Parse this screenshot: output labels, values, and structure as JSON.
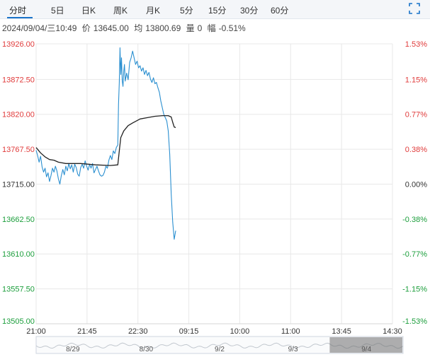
{
  "tabs": [
    {
      "label": "分时",
      "active": true
    },
    {
      "label": "5日"
    },
    {
      "label": "日K"
    },
    {
      "label": "周K"
    },
    {
      "label": "月K"
    },
    {
      "label": "5分"
    },
    {
      "label": "15分"
    },
    {
      "label": "30分"
    },
    {
      "label": "60分"
    }
  ],
  "info": {
    "datetime": "2024/09/04/三10:49",
    "price_label": "价",
    "price": "13645.00",
    "avg_label": "均",
    "avg": "13800.69",
    "vol_label": "量",
    "vol": "0",
    "change_label": "幅",
    "change": "-0.51%"
  },
  "colors": {
    "up": "#e03b3b",
    "down": "#1c9e3c",
    "neutral": "#333333",
    "price_line": "#2a8fd0",
    "avg_line": "#222222",
    "grid": "#e8e8e8",
    "accent": "#1a73c9"
  },
  "chart_data": {
    "type": "line",
    "title": "",
    "xlabel": "",
    "ylabel": "",
    "ylim": [
      13505.0,
      13926.0
    ],
    "y_ticks": [
      {
        "value": 13926.0,
        "label": "13926.00",
        "pct": "1.53%",
        "dir": "up"
      },
      {
        "value": 13872.5,
        "label": "13872.50",
        "pct": "1.15%",
        "dir": "up"
      },
      {
        "value": 13820.0,
        "label": "13820.00",
        "pct": "0.77%",
        "dir": "up"
      },
      {
        "value": 13767.5,
        "label": "13767.50",
        "pct": "0.38%",
        "dir": "up"
      },
      {
        "value": 13715.0,
        "label": "13715.00",
        "pct": "0.00%",
        "dir": "flat"
      },
      {
        "value": 13662.5,
        "label": "13662.50",
        "pct": "-0.38%",
        "dir": "down"
      },
      {
        "value": 13610.0,
        "label": "13610.00",
        "pct": "-0.77%",
        "dir": "down"
      },
      {
        "value": 13557.5,
        "label": "13557.50",
        "pct": "-1.15%",
        "dir": "down"
      },
      {
        "value": 13505.0,
        "label": "13505.00",
        "pct": "-1.53%",
        "dir": "down"
      }
    ],
    "x_ticks": [
      "21:00",
      "21:45",
      "22:30",
      "09:15",
      "10:00",
      "11:00",
      "13:45",
      "14:30"
    ],
    "series": [
      {
        "role": "price",
        "points": [
          [
            0.0,
            13766
          ],
          [
            2.0,
            13758
          ],
          [
            4.0,
            13748
          ],
          [
            6.0,
            13757
          ],
          [
            8.0,
            13741
          ],
          [
            10.0,
            13733
          ],
          [
            12.0,
            13739
          ],
          [
            14.0,
            13726
          ],
          [
            16.0,
            13732
          ],
          [
            18.0,
            13719
          ],
          [
            20.0,
            13728
          ],
          [
            22.0,
            13739
          ],
          [
            24.0,
            13733
          ],
          [
            26.0,
            13742
          ],
          [
            28.0,
            13735
          ],
          [
            30.0,
            13723
          ],
          [
            32.0,
            13715
          ],
          [
            34.0,
            13728
          ],
          [
            36.0,
            13737
          ],
          [
            38.0,
            13729
          ],
          [
            40.0,
            13742
          ],
          [
            42.0,
            13735
          ],
          [
            44.0,
            13746
          ],
          [
            46.0,
            13738
          ],
          [
            48.0,
            13744
          ],
          [
            50.0,
            13733
          ],
          [
            52.0,
            13745
          ],
          [
            54.0,
            13740
          ],
          [
            56.0,
            13730
          ],
          [
            58.0,
            13727
          ],
          [
            60.0,
            13740
          ],
          [
            62.0,
            13745
          ],
          [
            64.0,
            13739
          ],
          [
            66.0,
            13750
          ],
          [
            68.0,
            13742
          ],
          [
            70.0,
            13736
          ],
          [
            72.0,
            13745
          ],
          [
            74.0,
            13739
          ],
          [
            76.0,
            13746
          ],
          [
            78.0,
            13732
          ],
          [
            80.0,
            13737
          ],
          [
            82.0,
            13742
          ],
          [
            84.0,
            13735
          ],
          [
            86.0,
            13729
          ],
          [
            88.0,
            13727
          ],
          [
            90.0,
            13728
          ],
          [
            92.0,
            13733
          ],
          [
            94.0,
            13742
          ],
          [
            96.0,
            13739
          ],
          [
            98.0,
            13751
          ],
          [
            100.0,
            13758
          ],
          [
            102.0,
            13752
          ],
          [
            104.0,
            13765
          ],
          [
            106.0,
            13761
          ],
          [
            108.0,
            13770
          ],
          [
            110.0,
            13774
          ],
          [
            111.0,
            13835
          ],
          [
            112.0,
            13868
          ],
          [
            113.0,
            13920
          ],
          [
            114.0,
            13880
          ],
          [
            115.0,
            13905
          ],
          [
            116.0,
            13870
          ],
          [
            117.0,
            13862
          ],
          [
            118.0,
            13885
          ],
          [
            119.0,
            13895
          ],
          [
            120.0,
            13870
          ],
          [
            122.0,
            13882
          ],
          [
            124.0,
            13872
          ],
          [
            126.0,
            13898
          ],
          [
            128.0,
            13905
          ],
          [
            130.0,
            13915
          ],
          [
            132.0,
            13905
          ],
          [
            134.0,
            13895
          ],
          [
            136.0,
            13900
          ],
          [
            138.0,
            13890
          ],
          [
            140.0,
            13893
          ],
          [
            142.0,
            13885
          ],
          [
            144.0,
            13890
          ],
          [
            146.0,
            13880
          ],
          [
            148.0,
            13886
          ],
          [
            150.0,
            13878
          ],
          [
            152.0,
            13883
          ],
          [
            154.0,
            13873
          ],
          [
            156.0,
            13868
          ],
          [
            158.0,
            13875
          ],
          [
            160.0,
            13866
          ],
          [
            162.0,
            13868
          ],
          [
            164.0,
            13860
          ],
          [
            166.0,
            13853
          ],
          [
            168.0,
            13840
          ],
          [
            170.0,
            13830
          ],
          [
            172.0,
            13820
          ],
          [
            174.0,
            13815
          ],
          [
            176.0,
            13810
          ],
          [
            178.0,
            13795
          ],
          [
            180.0,
            13760
          ],
          [
            182.0,
            13700
          ],
          [
            184.0,
            13658
          ],
          [
            186.0,
            13632
          ],
          [
            188.0,
            13645
          ]
        ]
      },
      {
        "role": "average",
        "points": [
          [
            0.0,
            13770
          ],
          [
            6.0,
            13762
          ],
          [
            12.0,
            13756
          ],
          [
            18.0,
            13752
          ],
          [
            24.0,
            13751
          ],
          [
            30.0,
            13748
          ],
          [
            40.0,
            13746
          ],
          [
            60.0,
            13746
          ],
          [
            80.0,
            13744
          ],
          [
            100.0,
            13743
          ],
          [
            110.0,
            13744
          ],
          [
            112.0,
            13765
          ],
          [
            114.0,
            13785
          ],
          [
            118.0,
            13795
          ],
          [
            124.0,
            13803
          ],
          [
            130.0,
            13807
          ],
          [
            140.0,
            13813
          ],
          [
            150.0,
            13815
          ],
          [
            160.0,
            13817
          ],
          [
            170.0,
            13818
          ],
          [
            178.0,
            13818
          ],
          [
            182.0,
            13816
          ],
          [
            184.0,
            13808
          ],
          [
            186.0,
            13801
          ],
          [
            188.0,
            13800
          ]
        ]
      }
    ],
    "navigator": {
      "dates": [
        "8/29",
        "8/30",
        "9/2",
        "9/3",
        "9/4"
      ]
    }
  }
}
